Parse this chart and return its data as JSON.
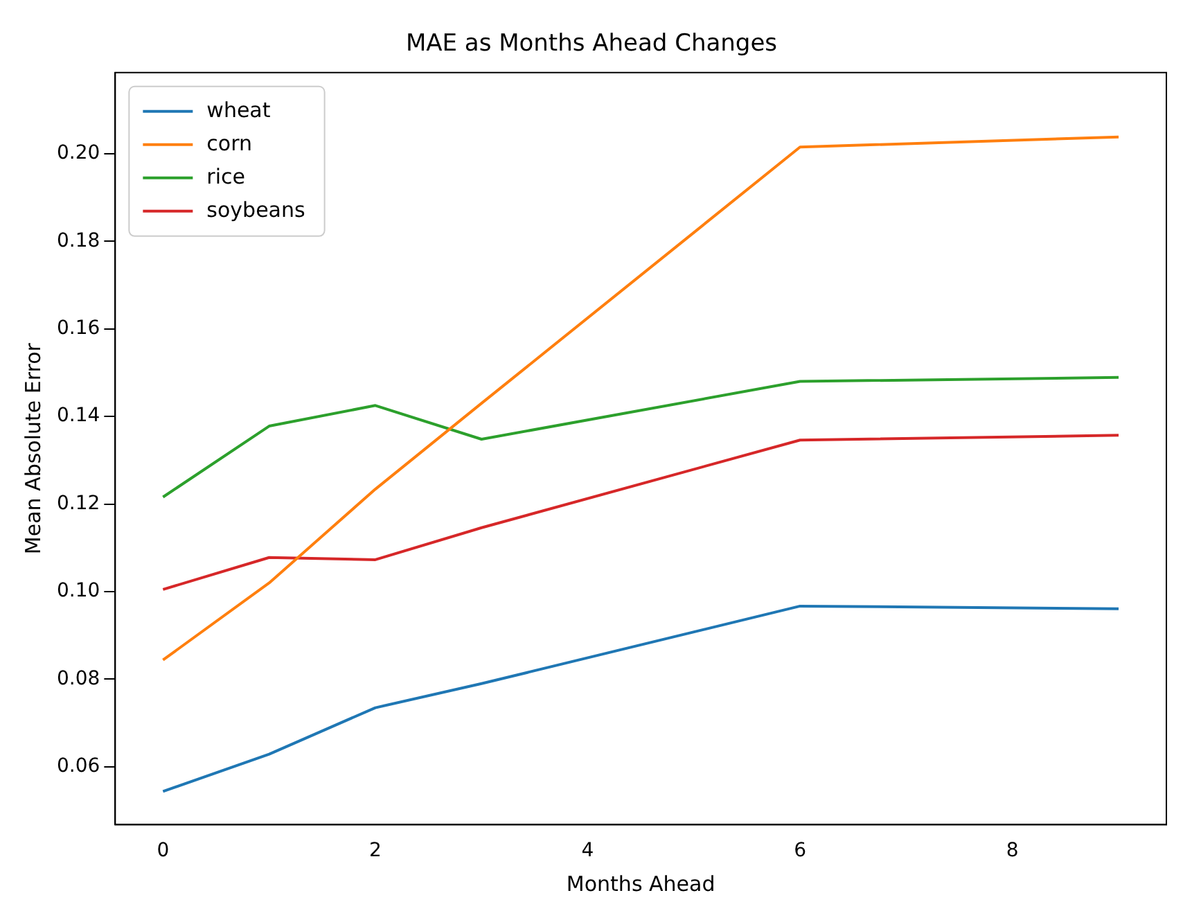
{
  "chart_data": {
    "type": "line",
    "title": "MAE as Months Ahead Changes",
    "xlabel": "Months Ahead",
    "ylabel": "Mean Absolute Error",
    "x": [
      0,
      1,
      2,
      3,
      6,
      9
    ],
    "series": [
      {
        "name": "wheat",
        "color": "#1f77b4",
        "values": [
          0.0544,
          0.0629,
          0.0735,
          0.079,
          0.0967,
          0.0961
        ]
      },
      {
        "name": "corn",
        "color": "#ff7f0e",
        "values": [
          0.0844,
          0.102,
          0.1234,
          0.143,
          0.2015,
          0.2038
        ]
      },
      {
        "name": "rice",
        "color": "#2ca02c",
        "values": [
          0.1216,
          0.1378,
          0.1425,
          0.1348,
          0.148,
          0.1489
        ]
      },
      {
        "name": "soybeans",
        "color": "#d62728",
        "values": [
          0.1005,
          0.1078,
          0.1073,
          0.1146,
          0.1346,
          0.1357
        ]
      }
    ],
    "xlim": [
      -0.45,
      9.45
    ],
    "xticks": [
      0,
      2,
      4,
      6,
      8
    ],
    "ylim": [
      0.0468,
      0.2185
    ],
    "yticks": [
      0.06,
      0.08,
      {
        "value": 0.1,
        "label": "0.10"
      },
      0.12,
      0.14,
      0.16,
      0.18,
      {
        "value": 0.2,
        "label": "0.20"
      }
    ],
    "legend": "top left",
    "grid": false,
    "marker": "none",
    "line_style": "solid"
  }
}
